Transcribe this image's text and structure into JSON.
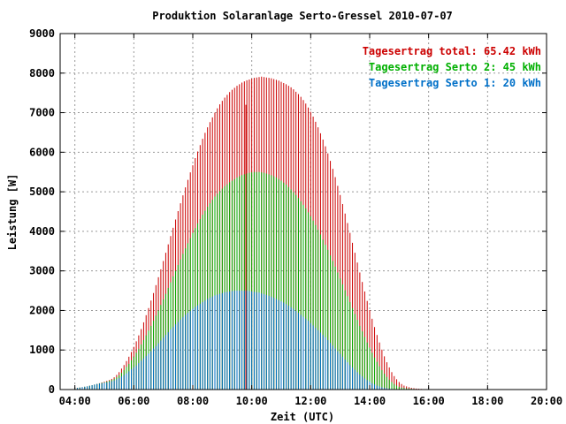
{
  "chart_data": {
    "type": "bar",
    "title": "Produktion Solaranlage Serto-Gressel 2010-07-07",
    "xlabel": "Zeit (UTC)",
    "ylabel": "Leistung [W]",
    "xlim": [
      3.5,
      20
    ],
    "ylim": [
      0,
      9000
    ],
    "x_ticks": [
      "04:00",
      "06:00",
      "08:00",
      "10:00",
      "12:00",
      "14:00",
      "16:00",
      "18:00",
      "20:00"
    ],
    "y_ticks": [
      "0",
      "1000",
      "2000",
      "3000",
      "4000",
      "5000",
      "6000",
      "7000",
      "8000",
      "9000"
    ],
    "grid": true,
    "legend_position": "top-right",
    "legend": [
      {
        "text": "Tagesertrag total: 65.42 kWh",
        "color": "#cc0000"
      },
      {
        "text": "Tagesertrag Serto 2: 45 kWh",
        "color": "#00b000"
      },
      {
        "text": "Tagesertrag Serto 1: 20 kWh",
        "color": "#0070c8"
      }
    ],
    "sampling": {
      "start_hour": 4.0,
      "step_hours": 0.08333
    },
    "series": [
      {
        "name": "Tagesertrag total: 65.42 kWh",
        "color": "#cc0000",
        "values": [
          30,
          40,
          50,
          60,
          70,
          80,
          95,
          110,
          125,
          140,
          160,
          180,
          200,
          220,
          240,
          270,
          310,
          370,
          440,
          530,
          620,
          720,
          830,
          950,
          1080,
          1220,
          1370,
          1530,
          1700,
          1880,
          2060,
          2250,
          2440,
          2640,
          2840,
          3040,
          3250,
          3460,
          3670,
          3880,
          4090,
          4300,
          4510,
          4710,
          4910,
          5110,
          5300,
          5490,
          5670,
          5850,
          6020,
          6180,
          6340,
          6490,
          6630,
          6760,
          6880,
          7000,
          7110,
          7210,
          7300,
          7380,
          7450,
          7520,
          7580,
          7630,
          7680,
          7720,
          7760,
          7790,
          7820,
          7840,
          7860,
          7880,
          7890,
          7900,
          7910,
          7900,
          7890,
          7880,
          7870,
          7850,
          7830,
          7810,
          7780,
          7750,
          7720,
          7680,
          7640,
          7590,
          7530,
          7470,
          7400,
          7320,
          7230,
          7130,
          7020,
          6900,
          6770,
          6630,
          6480,
          6320,
          6150,
          5970,
          5780,
          5580,
          5370,
          5150,
          4920,
          4690,
          4450,
          4210,
          3960,
          3710,
          3460,
          3210,
          2960,
          2720,
          2480,
          2240,
          2010,
          1790,
          1580,
          1380,
          1190,
          1010,
          840,
          690,
          560,
          440,
          340,
          260,
          190,
          140,
          100,
          80,
          60,
          45,
          35,
          25,
          20,
          15,
          10,
          8,
          5
        ],
        "spike": {
          "x": 9.8,
          "value": 7200
        }
      },
      {
        "name": "Tagesertrag Serto 2: 45 kWh",
        "color": "#00b000",
        "values": [
          30,
          40,
          50,
          60,
          70,
          80,
          95,
          110,
          125,
          140,
          155,
          170,
          180,
          200,
          220,
          240,
          270,
          310,
          360,
          420,
          490,
          570,
          650,
          740,
          830,
          930,
          1030,
          1140,
          1250,
          1370,
          1490,
          1610,
          1740,
          1870,
          2000,
          2140,
          2280,
          2420,
          2570,
          2710,
          2860,
          3000,
          3150,
          3290,
          3430,
          3570,
          3700,
          3830,
          3960,
          4080,
          4200,
          4310,
          4420,
          4520,
          4620,
          4710,
          4800,
          4880,
          4950,
          5020,
          5080,
          5140,
          5190,
          5240,
          5280,
          5320,
          5360,
          5390,
          5420,
          5440,
          5460,
          5480,
          5490,
          5500,
          5500,
          5500,
          5490,
          5480,
          5460,
          5440,
          5420,
          5390,
          5360,
          5320,
          5280,
          5230,
          5180,
          5120,
          5060,
          4990,
          4920,
          4840,
          4760,
          4670,
          4580,
          4480,
          4380,
          4270,
          4160,
          4040,
          3920,
          3790,
          3660,
          3530,
          3390,
          3250,
          3110,
          2960,
          2810,
          2660,
          2510,
          2360,
          2210,
          2060,
          1910,
          1760,
          1610,
          1470,
          1330,
          1190,
          1060,
          930,
          810,
          700,
          590,
          490,
          400,
          320,
          250,
          190,
          140,
          100,
          70,
          50,
          40,
          30,
          25,
          20,
          15,
          10,
          8,
          6,
          4
        ]
      },
      {
        "name": "Tagesertrag Serto 1: 20 kWh",
        "color": "#0070c8",
        "values": [
          30,
          40,
          50,
          60,
          70,
          80,
          95,
          110,
          125,
          140,
          150,
          160,
          170,
          180,
          190,
          210,
          230,
          260,
          290,
          330,
          370,
          410,
          460,
          510,
          560,
          610,
          670,
          730,
          790,
          850,
          910,
          970,
          1040,
          1100,
          1170,
          1240,
          1310,
          1380,
          1450,
          1520,
          1580,
          1650,
          1710,
          1770,
          1830,
          1890,
          1940,
          1990,
          2040,
          2090,
          2130,
          2170,
          2210,
          2250,
          2290,
          2320,
          2350,
          2380,
          2400,
          2420,
          2440,
          2460,
          2470,
          2480,
          2490,
          2500,
          2500,
          2500,
          2500,
          2500,
          2500,
          2490,
          2480,
          2470,
          2460,
          2450,
          2430,
          2410,
          2390,
          2370,
          2350,
          2320,
          2290,
          2260,
          2230,
          2200,
          2160,
          2120,
          2080,
          2040,
          1990,
          1940,
          1890,
          1840,
          1790,
          1740,
          1680,
          1620,
          1560,
          1500,
          1440,
          1380,
          1320,
          1250,
          1180,
          1110,
          1040,
          970,
          900,
          830,
          760,
          690,
          620,
          560,
          500,
          440,
          380,
          330,
          280,
          240,
          200,
          160,
          130,
          100,
          80,
          60,
          45,
          35,
          25,
          18,
          12,
          8,
          5,
          4,
          3,
          2,
          2,
          2,
          1,
          1,
          1,
          1,
          1
        ]
      }
    ]
  }
}
